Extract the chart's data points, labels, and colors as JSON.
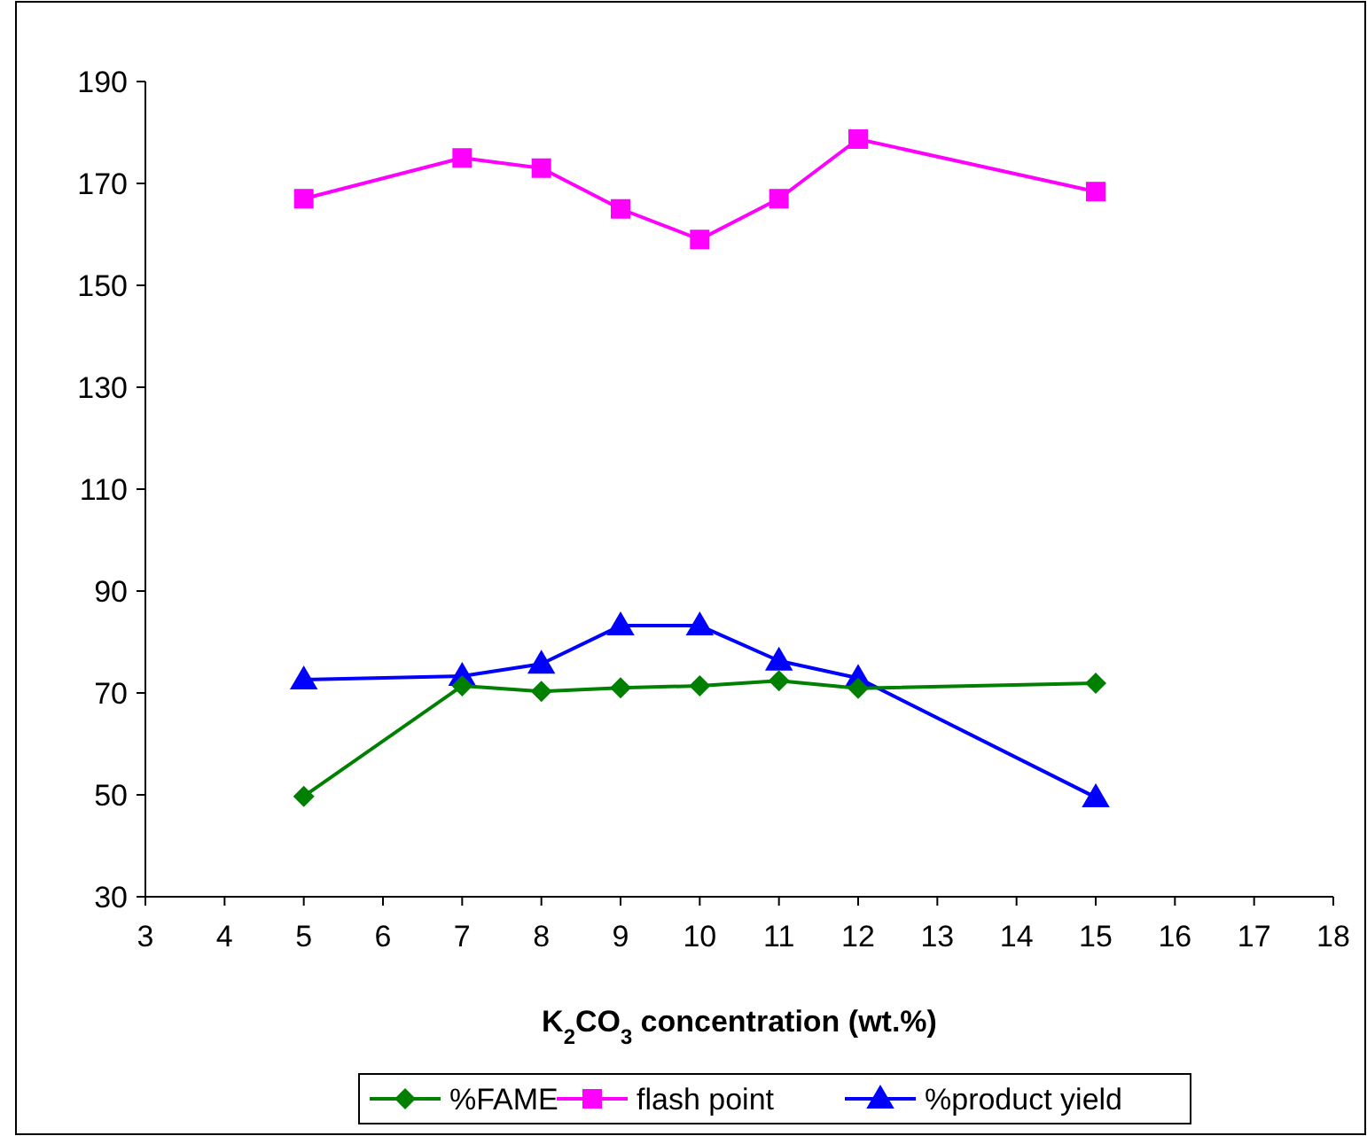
{
  "chart_data": {
    "type": "line",
    "xlabel": "K$_{2}$CO$_{3}$ concentration (wt.%)",
    "x": [
      5,
      7,
      8,
      9,
      10,
      11,
      12,
      15
    ],
    "xlim": [
      3,
      18
    ],
    "xticks": [
      3,
      4,
      5,
      6,
      7,
      8,
      9,
      10,
      11,
      12,
      13,
      14,
      15,
      16,
      17,
      18
    ],
    "ylim": [
      30,
      190
    ],
    "yticks": [
      30,
      50,
      70,
      90,
      110,
      130,
      150,
      170,
      190
    ],
    "grid": false,
    "legend": "bottom",
    "series": [
      {
        "name": "%FAME",
        "color": "#008000",
        "marker": "diamond",
        "values": [
          49.7,
          71.4,
          70.3,
          71,
          71.4,
          72.4,
          70.9,
          71.9
        ]
      },
      {
        "name": "flash point",
        "color": "#ff00ff",
        "marker": "square",
        "values": [
          167,
          175,
          173,
          165,
          159,
          167,
          178.7,
          168.4
        ]
      },
      {
        "name": "%product yield",
        "color": "#0000ff",
        "marker": "triangle",
        "values": [
          72.6,
          73.3,
          75.7,
          83.2,
          83.2,
          76.3,
          72.9,
          49.5
        ]
      }
    ]
  }
}
